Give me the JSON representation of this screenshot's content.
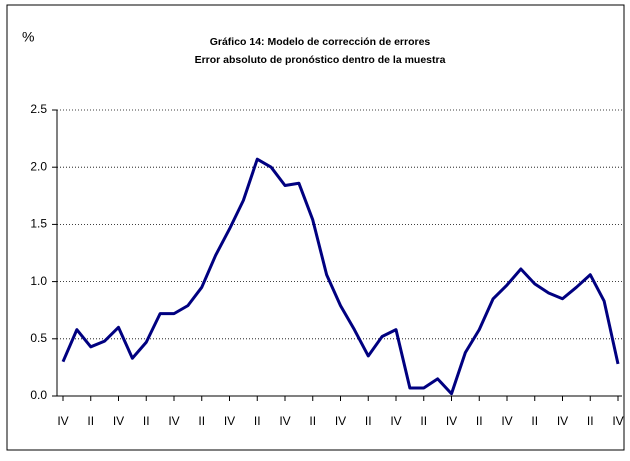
{
  "chart_data": {
    "type": "line",
    "title": "Gráfico 14: Modelo de corrección de errores",
    "subtitle": "Error absoluto de pronóstico dentro de la muestra",
    "ylabel": "%",
    "categories": [
      "IV",
      null,
      "II",
      null,
      "IV",
      null,
      "II",
      null,
      "IV",
      null,
      "II",
      null,
      "IV",
      null,
      "II",
      null,
      "IV",
      null,
      "II",
      null,
      "IV",
      null,
      "II",
      null,
      "IV",
      null,
      "II",
      null,
      "IV",
      null,
      "II",
      null,
      "IV",
      null,
      "II",
      null,
      "IV",
      null,
      "II",
      null,
      "IV"
    ],
    "series": [
      {
        "name": "Error absoluto",
        "color": "#000080",
        "values": [
          0.3,
          0.58,
          0.43,
          0.48,
          0.6,
          0.33,
          0.47,
          0.72,
          0.72,
          0.79,
          0.95,
          1.23,
          1.46,
          1.71,
          2.07,
          2.0,
          1.84,
          1.86,
          1.54,
          1.06,
          0.79,
          0.58,
          0.35,
          0.52,
          0.58,
          0.07,
          0.07,
          0.15,
          0.02,
          0.38,
          0.58,
          0.85,
          0.97,
          1.11,
          0.98,
          0.9,
          0.85,
          0.95,
          1.06,
          0.83,
          0.28
        ]
      }
    ],
    "ylim": [
      0,
      2.5
    ],
    "yticks": [
      {
        "value": 0,
        "label": "0.0"
      },
      0.5,
      {
        "value": 1,
        "label": "1.0"
      },
      1.5,
      {
        "value": 2,
        "label": "2.0"
      },
      2.5
    ],
    "grid": true
  }
}
